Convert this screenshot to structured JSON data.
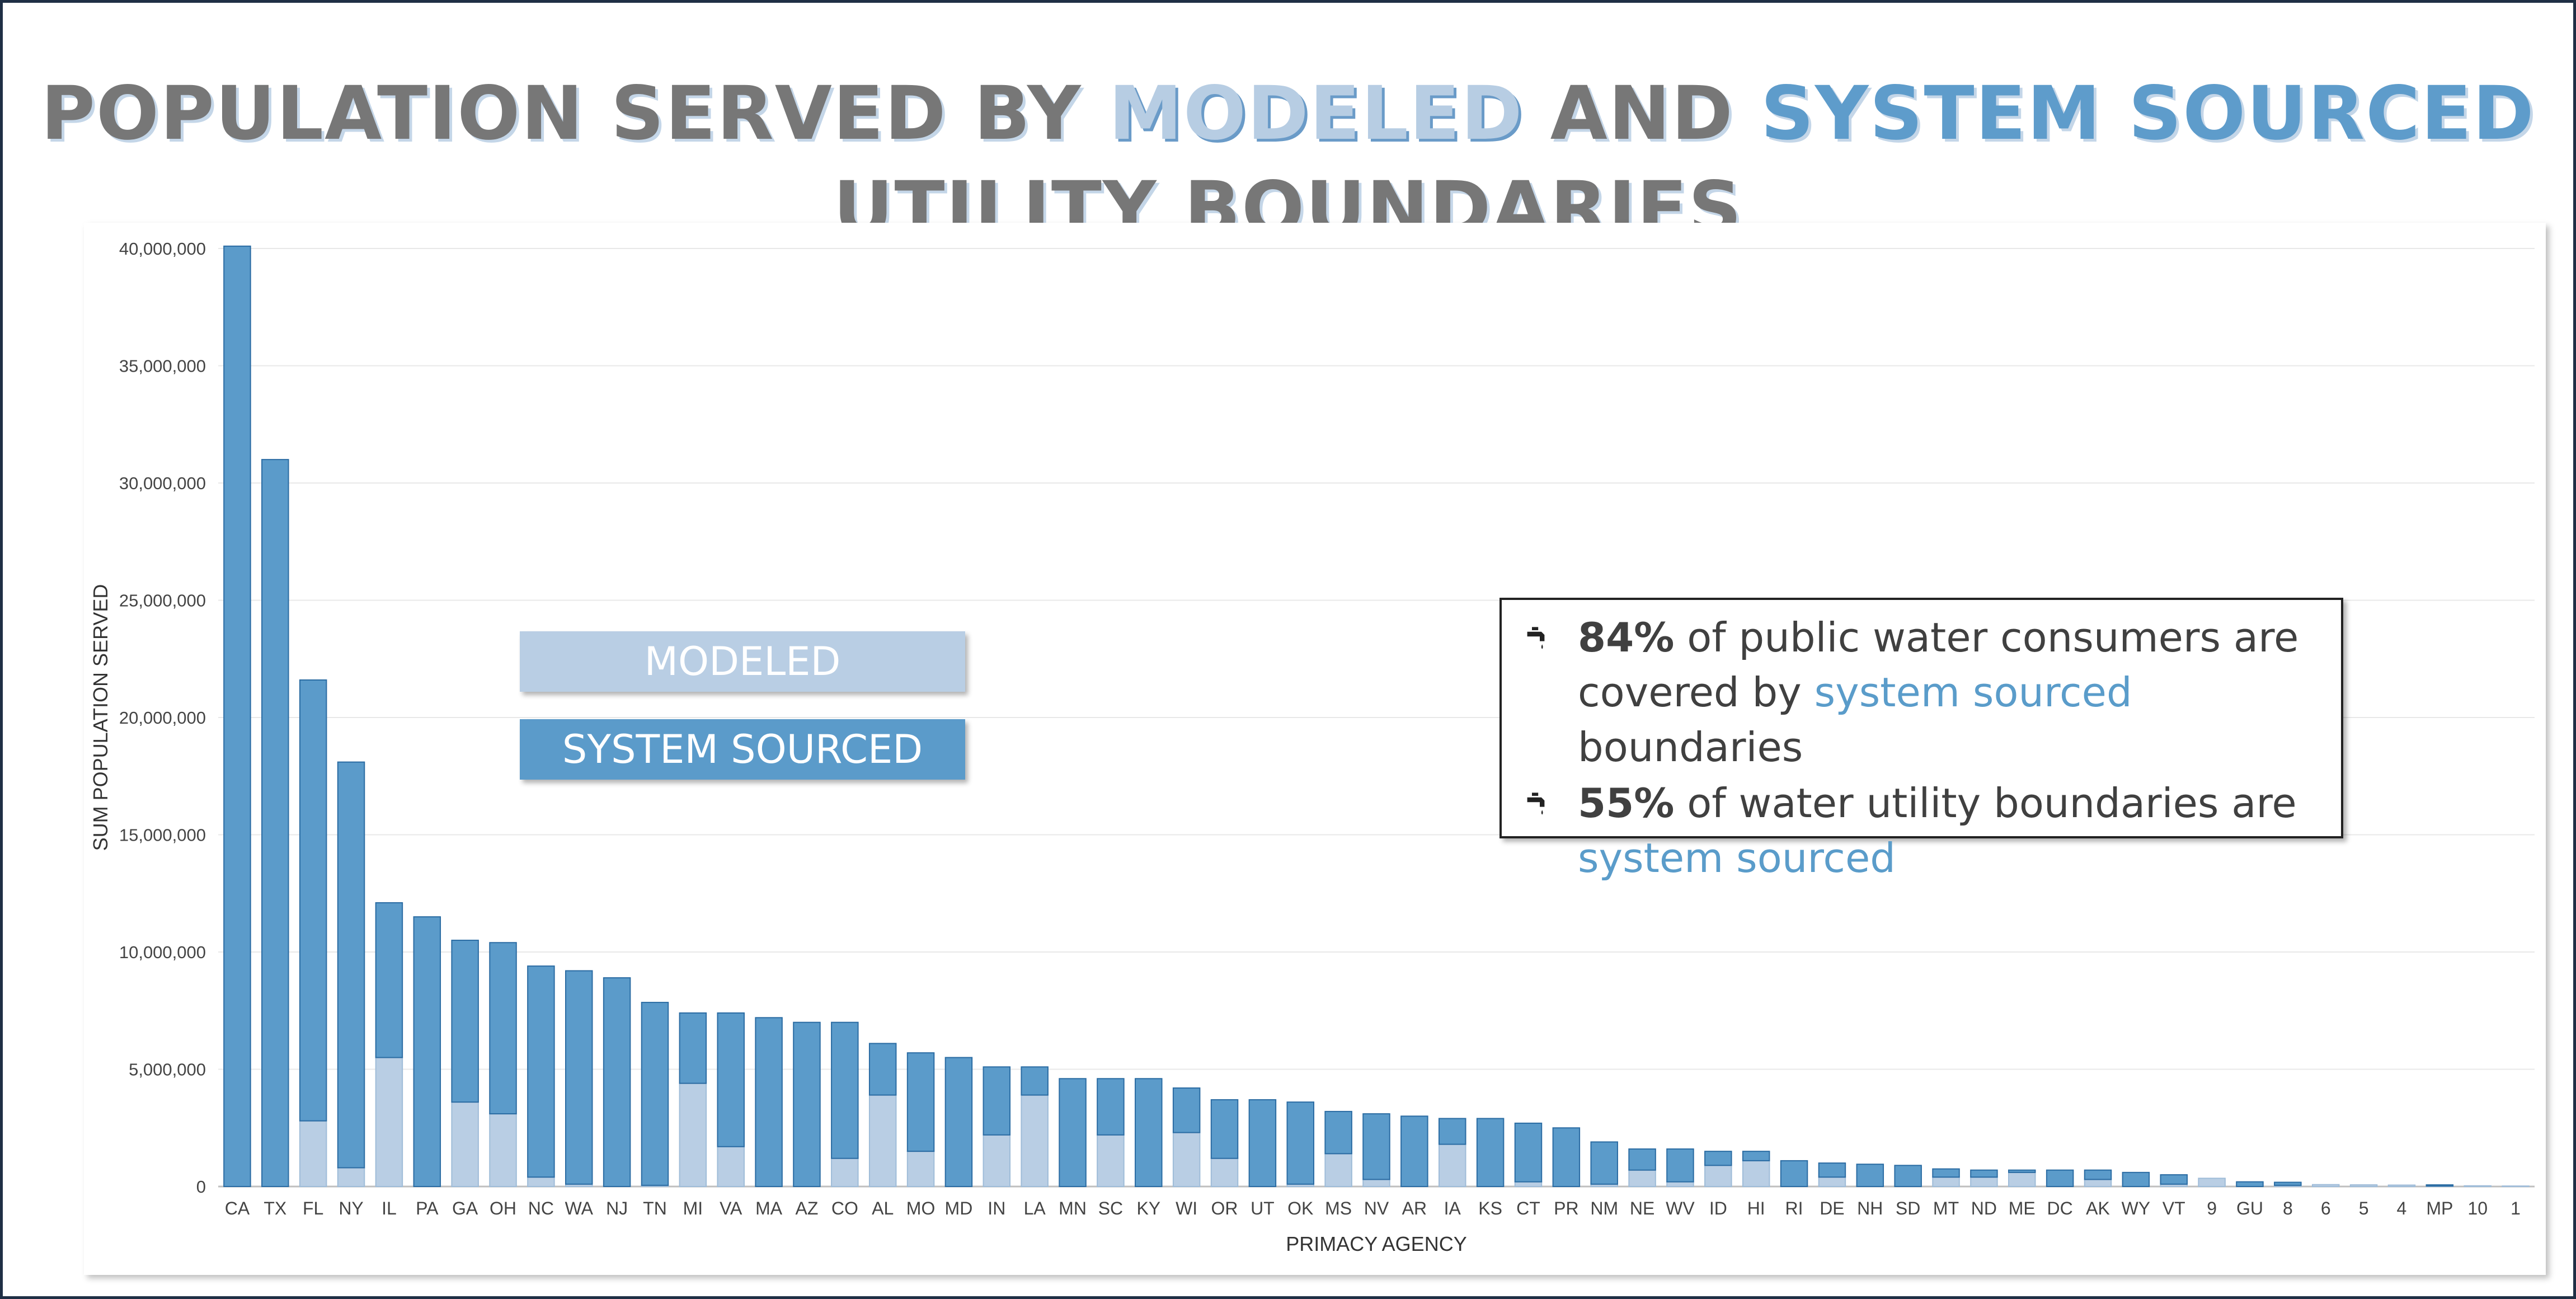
{
  "title": {
    "part1": "POPULATION SERVED BY ",
    "part2": "MODELED",
    "part3": " AND ",
    "part4": "SYSTEM SOURCED",
    "part5": " UTILITY BOUNDARIES"
  },
  "legend": {
    "modeled": "MODELED",
    "system": "SYSTEM SOURCED"
  },
  "stats": {
    "icon": "faucet-icon",
    "line1": {
      "value": "84%",
      "text_a": " of public water consumers are covered by ",
      "highlight": "system sourced",
      "text_b": " boundaries"
    },
    "line2": {
      "value": "55%",
      "text_a": " of water utility boundaries are ",
      "highlight": "system sourced"
    }
  },
  "colors": {
    "modeled": "#b9cee4",
    "system_sourced": "#5b9bca",
    "bar_outline": "#2b6ca3",
    "title_gray": "#777777",
    "frame": "#1f2f45"
  },
  "chart_data": {
    "type": "bar",
    "stacked": true,
    "xlabel": "PRIMACY AGENCY",
    "ylabel": "SUM POPULATION SERVED",
    "ylim": [
      0,
      40000000
    ],
    "yticks": [
      "0",
      "5,000,000",
      "10,000,000",
      "15,000,000",
      "20,000,000",
      "25,000,000",
      "30,000,000",
      "35,000,000",
      "40,000,000"
    ],
    "grid": true,
    "categories": [
      "CA",
      "TX",
      "FL",
      "NY",
      "IL",
      "PA",
      "GA",
      "OH",
      "NC",
      "WA",
      "NJ",
      "TN",
      "MI",
      "VA",
      "MA",
      "AZ",
      "CO",
      "AL",
      "MO",
      "MD",
      "IN",
      "LA",
      "MN",
      "SC",
      "KY",
      "WI",
      "OR",
      "UT",
      "OK",
      "MS",
      "NV",
      "AR",
      "IA",
      "KS",
      "CT",
      "PR",
      "NM",
      "NE",
      "WV",
      "ID",
      "HI",
      "RI",
      "DE",
      "NH",
      "SD",
      "MT",
      "ND",
      "ME",
      "DC",
      "AK",
      "WY",
      "VT",
      "9",
      "GU",
      "8",
      "6",
      "5",
      "4",
      "MP",
      "10",
      "1"
    ],
    "series": [
      {
        "name": "MODELED",
        "values": [
          0,
          0,
          2800000,
          800000,
          5500000,
          0,
          3600000,
          3100000,
          400000,
          100000,
          0,
          50000,
          4400000,
          1700000,
          0,
          0,
          1200000,
          3900000,
          1500000,
          0,
          2200000,
          3900000,
          0,
          2200000,
          0,
          2300000,
          1200000,
          0,
          100000,
          1400000,
          300000,
          0,
          1800000,
          0,
          200000,
          0,
          100000,
          700000,
          200000,
          900000,
          1100000,
          0,
          400000,
          0,
          0,
          400000,
          400000,
          600000,
          0,
          300000,
          0,
          100000,
          350000,
          0,
          50000,
          80000,
          70000,
          60000,
          20000,
          30000,
          20000
        ]
      },
      {
        "name": "SYSTEM SOURCED",
        "values": [
          40100000,
          31000000,
          18800000,
          17300000,
          6600000,
          11500000,
          6900000,
          7300000,
          9000000,
          9100000,
          8900000,
          7800000,
          3000000,
          5700000,
          7200000,
          7000000,
          5800000,
          2200000,
          4200000,
          5500000,
          2900000,
          1200000,
          4600000,
          2400000,
          4600000,
          1900000,
          2500000,
          3700000,
          3500000,
          1800000,
          2800000,
          3000000,
          1100000,
          2900000,
          2500000,
          2500000,
          1800000,
          900000,
          1400000,
          600000,
          400000,
          1100000,
          600000,
          950000,
          900000,
          350000,
          300000,
          100000,
          700000,
          400000,
          600000,
          400000,
          0,
          200000,
          130000,
          0,
          0,
          0,
          50000,
          0,
          0
        ]
      }
    ]
  }
}
